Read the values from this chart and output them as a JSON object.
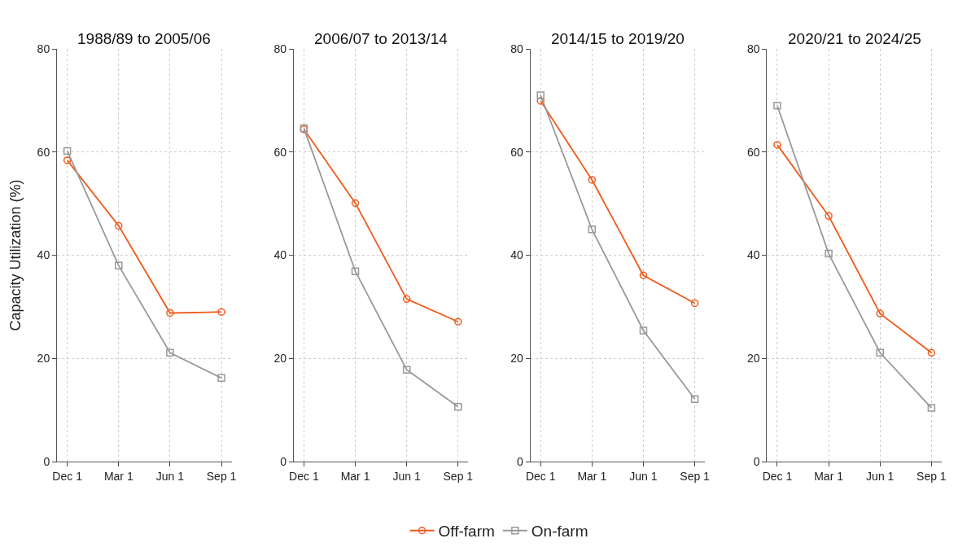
{
  "chart_data": [
    {
      "type": "line",
      "title": "1988/89 to 2005/06",
      "ylabel": "Capacity Utilization (%)",
      "categories": [
        "Dec 1",
        "Mar 1",
        "Jun 1",
        "Sep 1"
      ],
      "ylim": [
        0,
        80
      ],
      "yticks": [
        0,
        20,
        40,
        60,
        80
      ],
      "grid": true,
      "legend": "bottom",
      "line_style": "solid",
      "series": [
        {
          "name": "Off-farm",
          "color": "#f05a1a",
          "marker": "circle",
          "values": [
            58.4,
            45.7,
            28.8,
            29.0
          ]
        },
        {
          "name": "On-farm",
          "color": "#999999",
          "marker": "square",
          "values": [
            60.2,
            38.0,
            21.1,
            16.2
          ]
        }
      ]
    },
    {
      "type": "line",
      "title": "2006/07 to 2013/14",
      "categories": [
        "Dec 1",
        "Mar 1",
        "Jun 1",
        "Sep 1"
      ],
      "ylim": [
        0,
        80
      ],
      "yticks": [
        0,
        20,
        40,
        60,
        80
      ],
      "grid": true,
      "line_style": "solid",
      "series": [
        {
          "name": "Off-farm",
          "color": "#f05a1a",
          "marker": "circle",
          "values": [
            64.4,
            50.1,
            31.5,
            27.1
          ]
        },
        {
          "name": "On-farm",
          "color": "#999999",
          "marker": "square",
          "values": [
            64.6,
            36.9,
            17.8,
            10.6
          ]
        }
      ]
    },
    {
      "type": "line",
      "title": "2014/15 to 2019/20",
      "categories": [
        "Dec 1",
        "Mar 1",
        "Jun 1",
        "Sep 1"
      ],
      "ylim": [
        0,
        80
      ],
      "yticks": [
        0,
        20,
        40,
        60,
        80
      ],
      "grid": true,
      "line_style": "solid",
      "series": [
        {
          "name": "Off-farm",
          "color": "#f05a1a",
          "marker": "circle",
          "values": [
            69.9,
            54.6,
            36.1,
            30.7
          ]
        },
        {
          "name": "On-farm",
          "color": "#999999",
          "marker": "square",
          "values": [
            71.0,
            45.0,
            25.4,
            12.1
          ]
        }
      ]
    },
    {
      "type": "line",
      "title": "2020/21 to 2024/25",
      "categories": [
        "Dec 1",
        "Mar 1",
        "Jun 1",
        "Sep 1"
      ],
      "ylim": [
        0,
        80
      ],
      "yticks": [
        0,
        20,
        40,
        60,
        80
      ],
      "grid": true,
      "line_style": "solid",
      "series": [
        {
          "name": "Off-farm",
          "color": "#f05a1a",
          "marker": "circle",
          "values": [
            61.4,
            47.6,
            28.7,
            21.1
          ]
        },
        {
          "name": "On-farm",
          "color": "#999999",
          "marker": "square",
          "values": [
            69.0,
            40.3,
            21.1,
            10.4
          ]
        }
      ]
    }
  ]
}
